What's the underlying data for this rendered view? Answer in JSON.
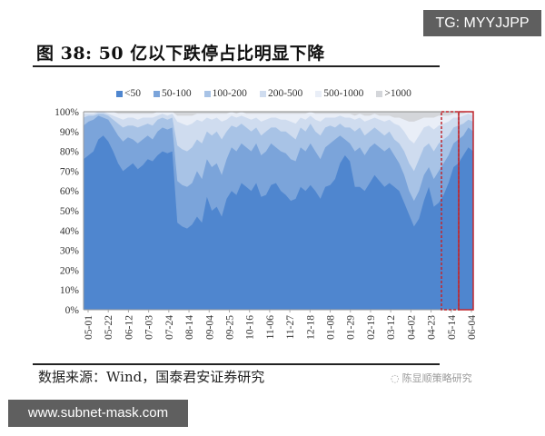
{
  "watermark_top": "TG: MYYJJPP",
  "watermark_bottom": "www.subnet-mask.com",
  "figure": {
    "title": "图 38:  50 亿以下跌停占比明显下降",
    "source": "数据来源：Wind，国泰君安证券研究",
    "wechat_label": "陈显顺策略研究"
  },
  "legend": [
    {
      "label": "<50",
      "color": "#4f86cf"
    },
    {
      "label": "50-100",
      "color": "#7ba4da"
    },
    {
      "label": "100-200",
      "color": "#a8c3e6"
    },
    {
      "label": "200-500",
      "color": "#cfdcef"
    },
    {
      "label": "500-1000",
      "color": "#e9eef7"
    },
    {
      "label": ">1000",
      "color": "#d4d6da"
    }
  ],
  "chart_data": {
    "type": "area",
    "stacked": true,
    "normalized": true,
    "title": "50亿以下跌停占比明显下降",
    "xlabel": "",
    "ylabel": "",
    "ylim": [
      0,
      100
    ],
    "y_ticks": [
      "0%",
      "10%",
      "20%",
      "30%",
      "40%",
      "50%",
      "60%",
      "70%",
      "80%",
      "90%",
      "100%"
    ],
    "x_tick_labels": [
      "05-01",
      "05-22",
      "06-12",
      "07-03",
      "07-24",
      "08-14",
      "09-04",
      "09-25",
      "10-16",
      "11-06",
      "11-27",
      "12-18",
      "01-08",
      "01-29",
      "02-19",
      "03-12",
      "04-02",
      "04-23",
      "05-14",
      "06-04"
    ],
    "legend_position": "top",
    "grid": false,
    "annotations": [
      {
        "type": "dashed-box",
        "color": "#c0262d",
        "x_range": [
          "~05-08",
          "~05-24"
        ],
        "note": "highlight recent period"
      },
      {
        "type": "solid-box",
        "color": "#c0262d",
        "x_range": [
          "~05-24",
          "06-04"
        ],
        "note": "highlight latest period"
      }
    ],
    "x_index": [
      0,
      1,
      2,
      3,
      4,
      5,
      6,
      7,
      8,
      9,
      10,
      11,
      12,
      13,
      14,
      15,
      16,
      17,
      18,
      19,
      20,
      21,
      22,
      23,
      24,
      25,
      26,
      27,
      28,
      29,
      30,
      31,
      32,
      33,
      34,
      35,
      36,
      37,
      38,
      39,
      40,
      41,
      42,
      43,
      44,
      45,
      46,
      47,
      48,
      49,
      50,
      51,
      52,
      53,
      54,
      55,
      56,
      57,
      58,
      59,
      60,
      61,
      62,
      63,
      64,
      65,
      66,
      67,
      68,
      69,
      70,
      71,
      72,
      73,
      74,
      75,
      76,
      77,
      78,
      79
    ],
    "cumulative_boundaries_note": "Each series value is the cumulative top boundary (%) of that band, read from the stacked chart.",
    "series": [
      {
        "name": "<50",
        "values": [
          76,
          78,
          80,
          86,
          88,
          85,
          80,
          74,
          70,
          72,
          74,
          71,
          73,
          76,
          75,
          78,
          80,
          79,
          80,
          44,
          42,
          41,
          43,
          47,
          44,
          57,
          50,
          52,
          47,
          56,
          60,
          58,
          64,
          62,
          60,
          64,
          57,
          58,
          63,
          64,
          60,
          58,
          55,
          56,
          62,
          60,
          63,
          60,
          56,
          62,
          63,
          66,
          74,
          78,
          75,
          62,
          62,
          60,
          64,
          68,
          65,
          62,
          64,
          62,
          60,
          54,
          48,
          42,
          46,
          55,
          62,
          52,
          54,
          58,
          64,
          72,
          74,
          78,
          82,
          80
        ]
      },
      {
        "name": "50-100",
        "values": [
          93,
          95,
          96,
          98,
          97,
          96,
          92,
          88,
          85,
          87,
          86,
          84,
          86,
          88,
          86,
          90,
          92,
          91,
          92,
          65,
          63,
          62,
          64,
          70,
          66,
          76,
          72,
          74,
          68,
          76,
          82,
          80,
          84,
          82,
          80,
          84,
          78,
          80,
          84,
          82,
          80,
          79,
          76,
          75,
          82,
          80,
          84,
          80,
          76,
          82,
          84,
          86,
          88,
          86,
          84,
          80,
          82,
          78,
          82,
          84,
          82,
          80,
          82,
          78,
          74,
          68,
          60,
          55,
          60,
          68,
          72,
          66,
          70,
          74,
          78,
          84,
          86,
          88,
          92,
          90
        ]
      },
      {
        "name": "100-200",
        "values": [
          97,
          98,
          98,
          99,
          99,
          98,
          96,
          94,
          92,
          93,
          93,
          92,
          93,
          94,
          93,
          96,
          97,
          96,
          97,
          83,
          81,
          80,
          82,
          86,
          84,
          90,
          88,
          90,
          86,
          90,
          93,
          92,
          94,
          92,
          90,
          92,
          88,
          90,
          92,
          92,
          90,
          90,
          88,
          86,
          92,
          90,
          94,
          90,
          88,
          92,
          93,
          92,
          94,
          92,
          92,
          90,
          92,
          88,
          90,
          92,
          90,
          88,
          90,
          86,
          84,
          80,
          74,
          70,
          76,
          82,
          84,
          80,
          84,
          86,
          88,
          92,
          93,
          94,
          96,
          95
        ]
      },
      {
        "name": "200-500",
        "values": [
          99,
          99,
          99,
          100,
          100,
          99,
          98,
          97,
          96,
          97,
          97,
          96,
          97,
          97,
          97,
          98,
          99,
          98,
          99,
          95,
          94,
          93,
          94,
          96,
          95,
          97,
          96,
          97,
          95,
          96,
          98,
          97,
          98,
          97,
          96,
          97,
          95,
          96,
          97,
          97,
          96,
          96,
          95,
          94,
          97,
          96,
          98,
          96,
          95,
          97,
          97,
          97,
          98,
          97,
          97,
          96,
          97,
          95,
          96,
          97,
          96,
          95,
          96,
          94,
          93,
          90,
          86,
          84,
          88,
          92,
          93,
          91,
          93,
          94,
          95,
          97,
          97,
          98,
          99,
          98
        ]
      },
      {
        "name": "500-1000",
        "values": [
          100,
          100,
          100,
          100,
          100,
          100,
          100,
          99,
          99,
          99,
          99,
          99,
          99,
          99,
          99,
          100,
          100,
          100,
          100,
          98,
          98,
          98,
          98,
          99,
          99,
          99,
          99,
          99,
          99,
          99,
          100,
          99,
          100,
          99,
          99,
          99,
          99,
          99,
          99,
          99,
          99,
          99,
          99,
          99,
          99,
          99,
          100,
          99,
          99,
          99,
          99,
          99,
          99,
          99,
          99,
          98,
          99,
          98,
          98,
          99,
          98,
          98,
          98,
          97,
          97,
          96,
          95,
          95,
          96,
          97,
          97,
          97,
          98,
          98,
          98,
          99,
          99,
          99,
          100,
          99
        ]
      },
      {
        "name": ">1000",
        "values": [
          100,
          100,
          100,
          100,
          100,
          100,
          100,
          100,
          100,
          100,
          100,
          100,
          100,
          100,
          100,
          100,
          100,
          100,
          100,
          100,
          100,
          100,
          100,
          100,
          100,
          100,
          100,
          100,
          100,
          100,
          100,
          100,
          100,
          100,
          100,
          100,
          100,
          100,
          100,
          100,
          100,
          100,
          100,
          100,
          100,
          100,
          100,
          100,
          100,
          100,
          100,
          100,
          100,
          100,
          100,
          100,
          100,
          100,
          100,
          100,
          100,
          100,
          100,
          100,
          100,
          100,
          100,
          100,
          100,
          100,
          100,
          100,
          100,
          100,
          100,
          100,
          100,
          100,
          100,
          100
        ]
      }
    ]
  }
}
